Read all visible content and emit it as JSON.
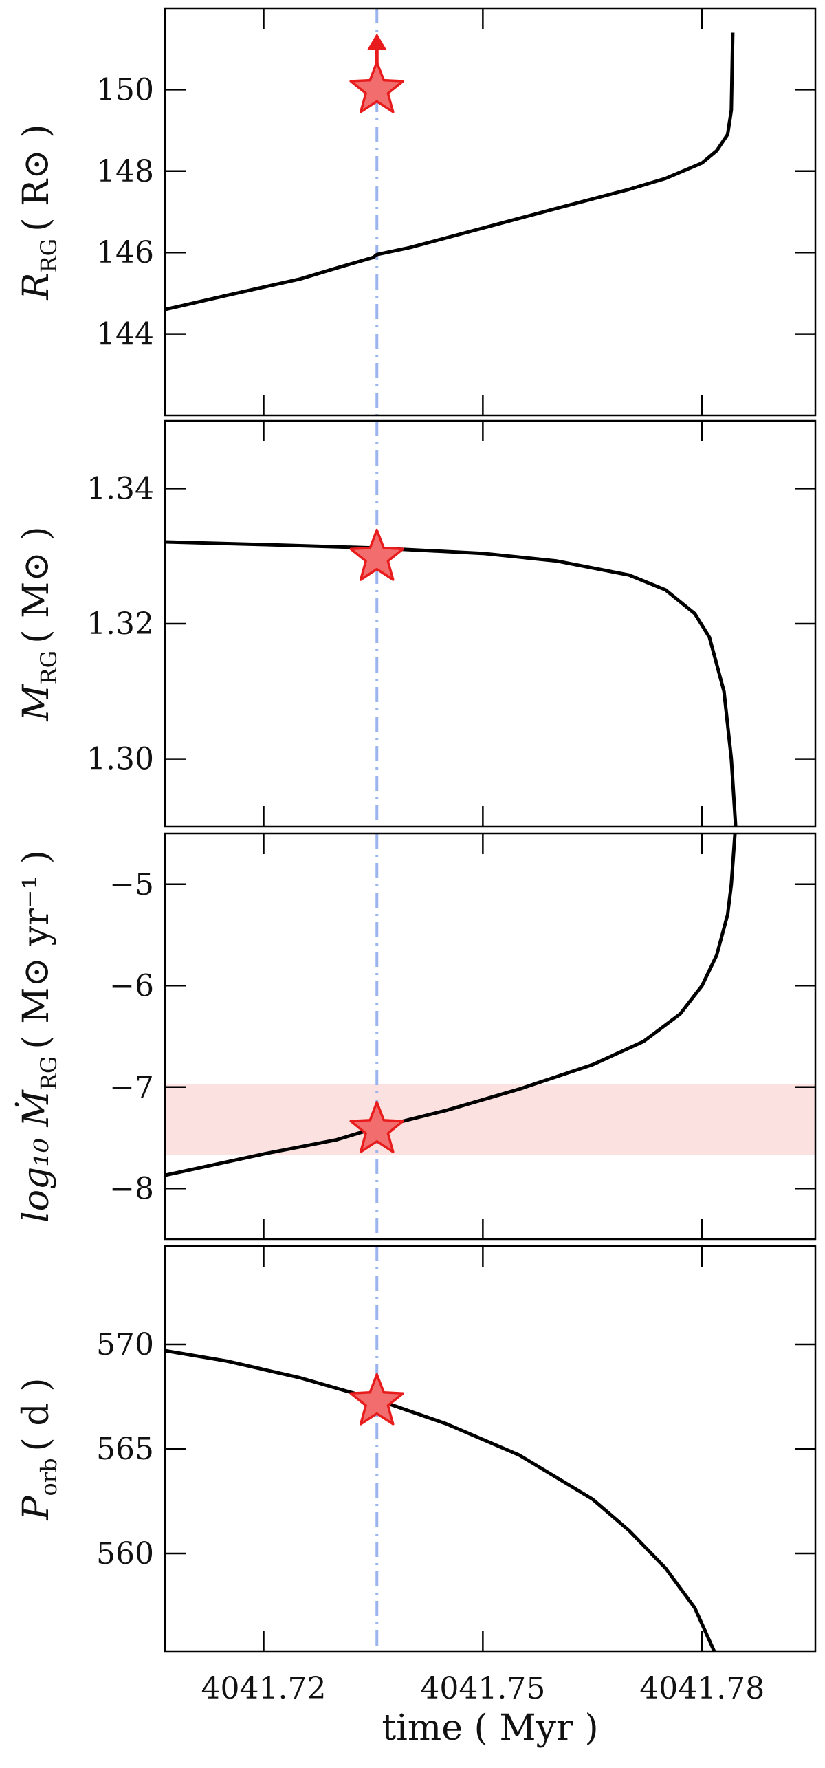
{
  "chart_data": {
    "type": "line",
    "layout": "4 vertically stacked panels sharing x-axis",
    "xlabel": "time ( Myr )",
    "xlim": [
      4041.7065,
      4041.7955
    ],
    "xticks": [
      4041.72,
      4041.75,
      4041.78
    ],
    "xtick_labels": [
      "4041.72",
      "4041.75",
      "4041.78"
    ],
    "marker_time": 4041.7355,
    "colors": {
      "curve": "#000000",
      "marker_line": "#9bb4ee",
      "star_fill": "#f26d6d",
      "star_edge": "#e81c1c",
      "band": "#fbe1df"
    },
    "panels": [
      {
        "id": "radius",
        "ylabel_main": "R",
        "ylabel_sub": "RG",
        "ylabel_unit": "( R⊙ )",
        "ylim": [
          142,
          152
        ],
        "yticks": [
          144,
          146,
          148,
          150
        ],
        "ytick_labels": [
          "144",
          "146",
          "148",
          "150"
        ],
        "curve": {
          "x": [
            4041.7065,
            4041.715,
            4041.725,
            4041.73,
            4041.735,
            4041.7355,
            4041.74,
            4041.75,
            4041.76,
            4041.77,
            4041.775,
            4041.78,
            4041.782,
            4041.7835,
            4041.784,
            4041.7842
          ],
          "y": [
            144.6,
            144.95,
            145.35,
            145.62,
            145.88,
            145.95,
            146.12,
            146.6,
            147.08,
            147.55,
            147.82,
            148.2,
            148.5,
            148.9,
            149.5,
            151.4
          ]
        },
        "marker": {
          "x": 4041.7355,
          "y": 150.0,
          "lower_limit": true
        },
        "band": null
      },
      {
        "id": "mass",
        "ylabel_main": "M",
        "ylabel_sub": "RG",
        "ylabel_unit": "( M⊙ )",
        "ylim": [
          1.29,
          1.35
        ],
        "yticks": [
          1.3,
          1.32,
          1.34
        ],
        "ytick_labels": [
          "1.30",
          "1.32",
          "1.34"
        ],
        "curve": {
          "x": [
            4041.7065,
            4041.72,
            4041.7355,
            4041.75,
            4041.76,
            4041.77,
            4041.775,
            4041.779,
            4041.781,
            4041.783,
            4041.784,
            4041.7846
          ],
          "y": [
            1.3321,
            1.3317,
            1.3312,
            1.3304,
            1.3293,
            1.3272,
            1.325,
            1.3215,
            1.318,
            1.31,
            1.3,
            1.29
          ]
        },
        "marker": {
          "x": 4041.7355,
          "y": 1.3298,
          "lower_limit": false
        },
        "band": null
      },
      {
        "id": "mdot",
        "ylabel_main": "log₁₀ Ṁ",
        "ylabel_sub": "RG",
        "ylabel_unit": "( M⊙ yr⁻¹ )",
        "ylim": [
          -8.5,
          -4.5
        ],
        "yticks": [
          -8,
          -7,
          -6,
          -5
        ],
        "ytick_labels": [
          "−8",
          "−7",
          "−6",
          "−5"
        ],
        "curve": {
          "x": [
            4041.7065,
            4041.72,
            4041.73,
            4041.7355,
            4041.745,
            4041.755,
            4041.765,
            4041.772,
            4041.777,
            4041.78,
            4041.782,
            4041.7835,
            4041.784,
            4041.7845
          ],
          "y": [
            -7.87,
            -7.66,
            -7.52,
            -7.4,
            -7.23,
            -7.02,
            -6.78,
            -6.55,
            -6.28,
            -6.0,
            -5.7,
            -5.3,
            -5.0,
            -4.5
          ]
        },
        "marker": {
          "x": 4041.7355,
          "y": -7.42,
          "lower_limit": false
        },
        "band": [
          -7.67,
          -6.97
        ]
      },
      {
        "id": "period",
        "ylabel_main": "P",
        "ylabel_sub": "orb",
        "ylabel_unit": "( d )",
        "ylim": [
          555.3,
          574.7
        ],
        "yticks": [
          560,
          565,
          570
        ],
        "ytick_labels": [
          "560",
          "565",
          "570"
        ],
        "curve": {
          "x": [
            4041.7065,
            4041.715,
            4041.725,
            4041.7355,
            4041.745,
            4041.755,
            4041.765,
            4041.77,
            4041.775,
            4041.779,
            4041.7817
          ],
          "y": [
            569.7,
            569.2,
            568.4,
            567.35,
            566.2,
            564.7,
            562.6,
            561.1,
            559.3,
            557.4,
            555.3
          ]
        },
        "marker": {
          "x": 4041.7355,
          "y": 567.25,
          "lower_limit": false
        },
        "band": null
      }
    ]
  }
}
